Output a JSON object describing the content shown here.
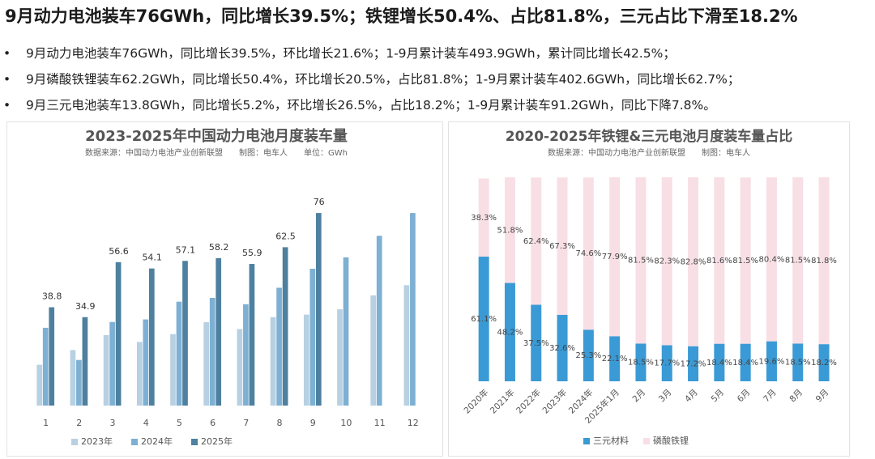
{
  "headline": "9月动力电池装车76GWh，同比增长39.5%；铁锂增长50.4%、占比81.8%，三元占比下滑至18.2%",
  "bullets": [
    "9月动力电池装车76GWh，同比增长39.5%，环比增长21.6%；1-9月累计装车493.9GWh，累计同比增长42.5%；",
    "9月磷酸铁锂装车62.2GWh，同比增长50.4%，环比增长20.5%，占比81.8%；1-9月累计装车402.6GWh，同比增长62.7%；",
    "9月三元电池装车13.8GWh，同比增长5.2%，环比增长26.5%，占比18.2%；1-9月累计装车91.2GWh，同比下降7.8%。"
  ],
  "chart_data": [
    {
      "type": "bar",
      "title": "2023-2025年中国动力电池月度装车量",
      "subtitle": "数据来源：中国动力电池产业创新联盟　　制图：电车人　　单位：GWh",
      "categories": [
        "1",
        "2",
        "3",
        "4",
        "5",
        "6",
        "7",
        "8",
        "9",
        "10",
        "11",
        "12"
      ],
      "series": [
        {
          "name": "2023年",
          "color": "#b7d0e2",
          "values": [
            16.1,
            21.9,
            27.8,
            25.1,
            28.2,
            32.9,
            30.2,
            34.9,
            35.9,
            38.0,
            43.5,
            47.5
          ]
        },
        {
          "name": "2024年",
          "color": "#7eb0d3",
          "values": [
            30.7,
            18.0,
            33.0,
            34.0,
            41.0,
            42.5,
            40.0,
            46.5,
            54.0,
            58.5,
            67.0,
            76.0
          ]
        },
        {
          "name": "2025年",
          "color": "#4e809f",
          "show_labels": true,
          "values": [
            38.8,
            34.9,
            56.6,
            54.1,
            57.1,
            58.2,
            55.9,
            62.5,
            76,
            null,
            null,
            null
          ]
        }
      ],
      "legend": "bottom"
    },
    {
      "type": "stacked_bar",
      "title": "2020-2025年铁锂&三元电池月度装车量占比",
      "subtitle": "数据来源：中国动力电池产业创新联盟　　制图：电车人",
      "categories": [
        "2020年",
        "2021年",
        "2022年",
        "2023年",
        "2024年",
        "2025年1月",
        "2月",
        "3月",
        "4月",
        "5月",
        "6月",
        "7月",
        "8月",
        "9月"
      ],
      "series": [
        {
          "name": "三元材料",
          "color": "#3a9ad5",
          "values": [
            61.1,
            48.2,
            37.5,
            32.6,
            25.3,
            22.1,
            18.5,
            17.7,
            17.2,
            18.4,
            18.4,
            19.6,
            18.5,
            18.2
          ],
          "value_labels": [
            "61.1%",
            "48.2%",
            "37.5%",
            "32.6%",
            "25.3%",
            "22.1%",
            "18.5%",
            "17.7%",
            "17.2%",
            "18.4%",
            "18.4%",
            "19.6%",
            "18.5%",
            "18.2%"
          ]
        },
        {
          "name": "磷酸铁锂",
          "color": "#f8dfe5",
          "values": [
            38.3,
            51.8,
            62.4,
            67.3,
            74.6,
            77.9,
            81.5,
            82.3,
            82.8,
            81.6,
            81.5,
            80.4,
            81.5,
            81.8
          ],
          "value_labels": [
            "38.3%",
            "51.8%",
            "62.4%",
            "67.3%",
            "74.6%",
            "77.9%",
            "81.5%",
            "82.3%",
            "82.8%",
            "81.6%",
            "81.5%",
            "80.4%",
            "81.5%",
            "81.8%"
          ]
        }
      ],
      "legend": "bottom"
    }
  ]
}
